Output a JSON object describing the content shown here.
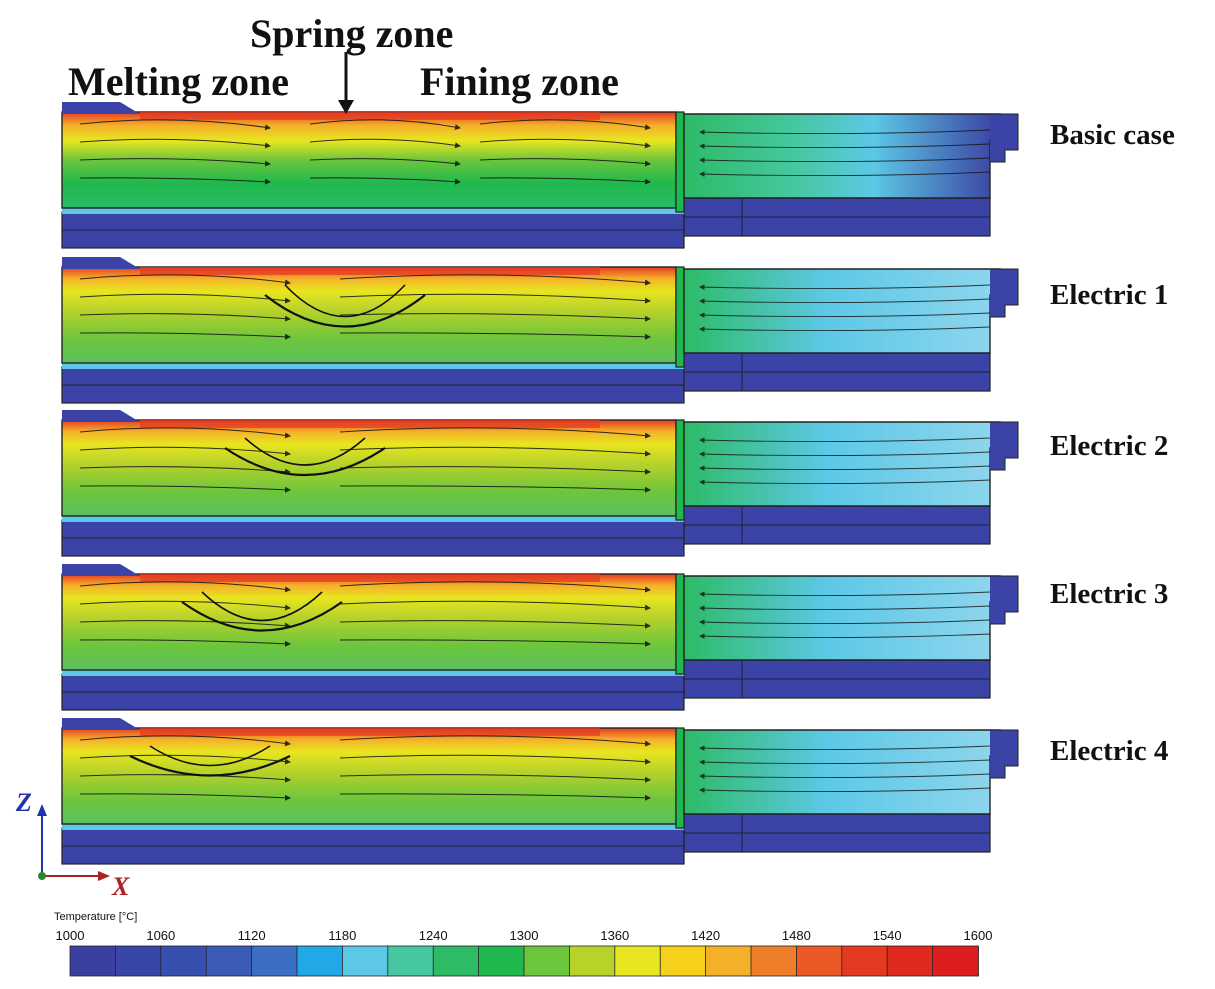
{
  "annotations": {
    "spring_zone": "Spring zone",
    "melting_zone": "Melting zone",
    "fining_zone": "Fining zone"
  },
  "cases": [
    {
      "label": "Basic case",
      "spring_dip": 0.0
    },
    {
      "label": "Electric 1",
      "spring_dip": 0.55
    },
    {
      "label": "Electric 2",
      "spring_dip": 0.4
    },
    {
      "label": "Electric 3",
      "spring_dip": 0.45
    },
    {
      "label": "Electric 4",
      "spring_dip": 0.15
    }
  ],
  "axes": {
    "z_label": "Z",
    "x_label": "X",
    "z_color": "#2233aa",
    "x_color": "#aa2222"
  },
  "legend": {
    "title": "Temperature [°C]",
    "ticks": [
      "1000",
      "1060",
      "1120",
      "1180",
      "1240",
      "1300",
      "1360",
      "1420",
      "1480",
      "1540",
      "1600"
    ],
    "colors": [
      "#3b3fa0",
      "#3846a8",
      "#3750b0",
      "#3a5cb8",
      "#3b6ec4",
      "#21a8e6",
      "#5cc8e6",
      "#46c7a0",
      "#2dbb66",
      "#1fb84e",
      "#6cc63c",
      "#b8d22a",
      "#e8e620",
      "#f5d11c",
      "#f5b02a",
      "#ef7e2a",
      "#e95a26",
      "#e43a22",
      "#e02a20",
      "#dc1f1e"
    ]
  }
}
